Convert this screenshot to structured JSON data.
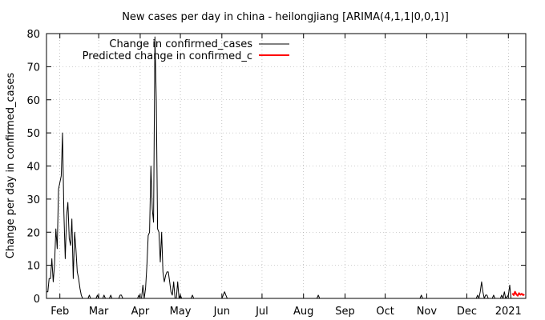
{
  "chart_data": {
    "type": "line",
    "title": "New cases per day in china - heilongjiang [ARIMA(4,1,1|0,0,1)]",
    "xlabel": "",
    "ylabel": "Change per day in confirmed_cases",
    "ylim": [
      0,
      80
    ],
    "xlim": [
      "2020-01-22",
      "2021-01-14"
    ],
    "grid": true,
    "legend_position": "top-left",
    "y_ticks": [
      "0",
      "10",
      "20",
      "30",
      "40",
      "50",
      "60",
      "70",
      "80"
    ],
    "x_ticks": [
      {
        "label": "Feb",
        "date": "2020-02-01"
      },
      {
        "label": "Mar",
        "date": "2020-03-01"
      },
      {
        "label": "Apr",
        "date": "2020-04-01"
      },
      {
        "label": "May",
        "date": "2020-05-01"
      },
      {
        "label": "Jun",
        "date": "2020-06-01"
      },
      {
        "label": "Jul",
        "date": "2020-07-01"
      },
      {
        "label": "Aug",
        "date": "2020-08-01"
      },
      {
        "label": "Sep",
        "date": "2020-09-01"
      },
      {
        "label": "Oct",
        "date": "2020-10-01"
      },
      {
        "label": "Nov",
        "date": "2020-11-01"
      },
      {
        "label": "Dec",
        "date": "2020-12-01"
      },
      {
        "label": "2021",
        "date": "2021-01-01"
      }
    ],
    "series": [
      {
        "name": "Change in confirmed_cases",
        "color": "#000000",
        "points": [
          [
            "2020-01-22",
            2
          ],
          [
            "2020-01-23",
            2
          ],
          [
            "2020-01-24",
            6
          ],
          [
            "2020-01-25",
            6
          ],
          [
            "2020-01-26",
            12
          ],
          [
            "2020-01-27",
            5
          ],
          [
            "2020-01-28",
            10
          ],
          [
            "2020-01-29",
            21
          ],
          [
            "2020-01-30",
            15
          ],
          [
            "2020-01-31",
            33
          ],
          [
            "2020-02-01",
            35
          ],
          [
            "2020-02-02",
            37
          ],
          [
            "2020-02-03",
            50
          ],
          [
            "2020-02-04",
            26
          ],
          [
            "2020-02-05",
            12
          ],
          [
            "2020-02-06",
            25
          ],
          [
            "2020-02-07",
            29
          ],
          [
            "2020-02-08",
            18
          ],
          [
            "2020-02-09",
            16
          ],
          [
            "2020-02-10",
            24
          ],
          [
            "2020-02-11",
            6
          ],
          [
            "2020-02-12",
            20
          ],
          [
            "2020-02-13",
            15
          ],
          [
            "2020-02-14",
            8
          ],
          [
            "2020-02-15",
            6
          ],
          [
            "2020-02-16",
            3
          ],
          [
            "2020-02-17",
            1
          ],
          [
            "2020-02-18",
            0
          ],
          [
            "2020-02-19",
            0
          ],
          [
            "2020-02-22",
            0
          ],
          [
            "2020-02-23",
            1
          ],
          [
            "2020-02-24",
            0
          ],
          [
            "2020-02-28",
            0
          ],
          [
            "2020-02-29",
            1
          ],
          [
            "2020-03-01",
            0
          ],
          [
            "2020-03-04",
            0
          ],
          [
            "2020-03-05",
            1
          ],
          [
            "2020-03-06",
            0
          ],
          [
            "2020-03-09",
            0
          ],
          [
            "2020-03-10",
            1
          ],
          [
            "2020-03-11",
            0
          ],
          [
            "2020-03-16",
            0
          ],
          [
            "2020-03-17",
            1
          ],
          [
            "2020-03-18",
            1
          ],
          [
            "2020-03-19",
            0
          ],
          [
            "2020-03-30",
            0
          ],
          [
            "2020-03-31",
            1
          ],
          [
            "2020-04-01",
            0
          ],
          [
            "2020-04-02",
            0
          ],
          [
            "2020-04-03",
            4
          ],
          [
            "2020-04-04",
            0
          ],
          [
            "2020-04-05",
            3
          ],
          [
            "2020-04-06",
            10
          ],
          [
            "2020-04-07",
            19
          ],
          [
            "2020-04-08",
            20
          ],
          [
            "2020-04-09",
            40
          ],
          [
            "2020-04-10",
            27
          ],
          [
            "2020-04-11",
            23
          ],
          [
            "2020-04-12",
            79
          ],
          [
            "2020-04-13",
            60
          ],
          [
            "2020-04-14",
            21
          ],
          [
            "2020-04-15",
            20
          ],
          [
            "2020-04-16",
            11
          ],
          [
            "2020-04-17",
            20
          ],
          [
            "2020-04-18",
            8
          ],
          [
            "2020-04-19",
            5
          ],
          [
            "2020-04-20",
            7
          ],
          [
            "2020-04-21",
            8
          ],
          [
            "2020-04-22",
            8
          ],
          [
            "2020-04-23",
            5
          ],
          [
            "2020-04-24",
            2
          ],
          [
            "2020-04-25",
            1
          ],
          [
            "2020-04-26",
            5
          ],
          [
            "2020-04-27",
            0
          ],
          [
            "2020-04-28",
            0
          ],
          [
            "2020-04-29",
            5
          ],
          [
            "2020-04-30",
            0
          ],
          [
            "2020-05-01",
            1
          ],
          [
            "2020-05-02",
            0
          ],
          [
            "2020-05-09",
            0
          ],
          [
            "2020-05-10",
            1
          ],
          [
            "2020-05-11",
            0
          ],
          [
            "2020-06-01",
            0
          ],
          [
            "2020-06-02",
            1
          ],
          [
            "2020-06-03",
            2
          ],
          [
            "2020-06-04",
            1
          ],
          [
            "2020-06-05",
            0
          ],
          [
            "2020-08-11",
            0
          ],
          [
            "2020-08-12",
            1
          ],
          [
            "2020-08-13",
            0
          ],
          [
            "2020-10-27",
            0
          ],
          [
            "2020-10-28",
            1
          ],
          [
            "2020-10-29",
            0
          ],
          [
            "2020-12-08",
            0
          ],
          [
            "2020-12-09",
            1
          ],
          [
            "2020-12-10",
            0
          ],
          [
            "2020-12-11",
            2
          ],
          [
            "2020-12-12",
            5
          ],
          [
            "2020-12-13",
            2
          ],
          [
            "2020-12-14",
            0
          ],
          [
            "2020-12-15",
            1
          ],
          [
            "2020-12-16",
            1
          ],
          [
            "2020-12-17",
            0
          ],
          [
            "2020-12-20",
            0
          ],
          [
            "2020-12-21",
            1
          ],
          [
            "2020-12-22",
            0
          ],
          [
            "2020-12-26",
            0
          ],
          [
            "2020-12-27",
            1
          ],
          [
            "2020-12-28",
            0
          ],
          [
            "2020-12-29",
            2
          ],
          [
            "2020-12-30",
            0
          ],
          [
            "2021-01-01",
            1
          ],
          [
            "2021-01-02",
            4
          ],
          [
            "2021-01-03",
            0
          ]
        ]
      },
      {
        "name": "Predicted change in confirmed_c",
        "color": "#ff0000",
        "points": [
          [
            "2021-01-04",
            1.5
          ],
          [
            "2021-01-05",
            1.0
          ],
          [
            "2021-01-06",
            2.0
          ],
          [
            "2021-01-07",
            1.2
          ],
          [
            "2021-01-08",
            0.8
          ],
          [
            "2021-01-09",
            1.6
          ],
          [
            "2021-01-10",
            1.1
          ],
          [
            "2021-01-11",
            1.4
          ],
          [
            "2021-01-12",
            1.0
          ],
          [
            "2021-01-13",
            1.2
          ]
        ]
      }
    ]
  }
}
